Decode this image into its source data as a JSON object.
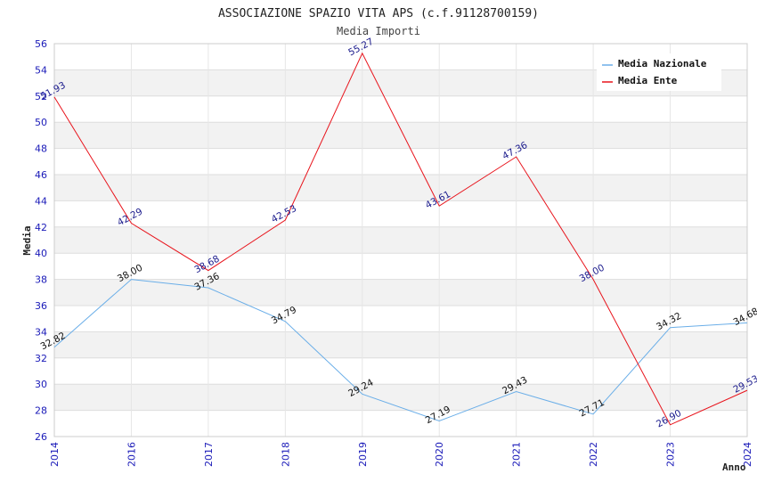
{
  "chart_data": {
    "type": "line",
    "title": "ASSOCIAZIONE SPAZIO VITA APS (c.f.91128700159)",
    "subtitle": "Media Importi",
    "xlabel": "Anno",
    "ylabel": "Media",
    "categories": [
      "2014",
      "2016",
      "2017",
      "2018",
      "2019",
      "2020",
      "2021",
      "2022",
      "2023",
      "2024"
    ],
    "ylim": [
      26,
      56
    ],
    "ystep": 2,
    "grid": true,
    "legend_position": "top-right",
    "series": [
      {
        "name": "Media Nazionale",
        "color": "#6aaee8",
        "label_color": "#111111",
        "values": [
          32.82,
          38.0,
          37.36,
          34.79,
          29.24,
          27.19,
          29.43,
          27.71,
          34.32,
          34.68
        ],
        "labels": [
          "32.82",
          "38.00",
          "37.36",
          "34.79",
          "29.24",
          "27.19",
          "29.43",
          "27.71",
          "34.32",
          "34.68"
        ]
      },
      {
        "name": "Media Ente",
        "color": "#e8141c",
        "label_color": "#1a1a8c",
        "values": [
          51.93,
          42.29,
          38.68,
          42.53,
          55.27,
          43.61,
          47.36,
          38.0,
          26.9,
          29.53
        ],
        "labels": [
          "51.93",
          "42.29",
          "38.68",
          "42.53",
          "55.27",
          "43.61",
          "47.36",
          "38.00",
          "26.90",
          "29.53"
        ]
      }
    ]
  }
}
